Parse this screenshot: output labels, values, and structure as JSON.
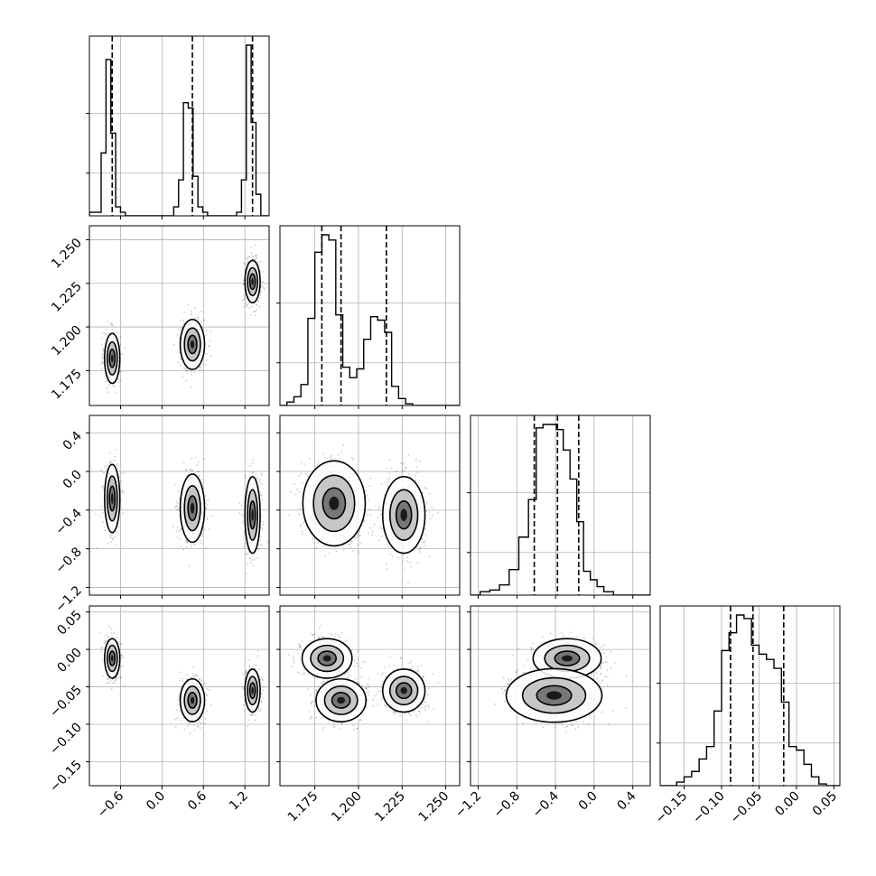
{
  "chart_data": {
    "type": "corner",
    "grid": true,
    "parameters": [
      {
        "range": [
          -1.05,
          1.55
        ],
        "ticks": [
          -0.6,
          0.0,
          0.6,
          1.2
        ],
        "tick_labels": [
          "−0.6",
          "0.0",
          "0.6",
          "1.2"
        ],
        "quantiles": [
          -0.72,
          0.44,
          1.31
        ],
        "hist": {
          "edges": [
            -1.05,
            -0.95,
            -0.88,
            -0.81,
            -0.74,
            -0.67,
            -0.6,
            -0.53,
            -0.46,
            -0.39,
            -0.32,
            -0.25,
            -0.18,
            -0.11,
            -0.04,
            0.03,
            0.1,
            0.17,
            0.24,
            0.31,
            0.38,
            0.45,
            0.52,
            0.59,
            0.66,
            0.73,
            0.8,
            0.87,
            0.94,
            1.01,
            1.08,
            1.15,
            1.22,
            1.29,
            1.36,
            1.43,
            1.55
          ],
          "counts": [
            0.02,
            0.02,
            0.35,
            0.87,
            0.46,
            0.05,
            0.02,
            0.0,
            0.0,
            0.0,
            0.0,
            0.0,
            0.0,
            0.0,
            0.0,
            0.0,
            0.0,
            0.05,
            0.2,
            0.63,
            0.6,
            0.22,
            0.05,
            0.02,
            0.0,
            0.0,
            0.0,
            0.0,
            0.0,
            0.0,
            0.02,
            0.2,
            0.95,
            0.52,
            0.12,
            0.0
          ]
        }
      },
      {
        "range": [
          1.155,
          1.258
        ],
        "ticks": [
          1.175,
          1.2,
          1.225,
          1.25
        ],
        "tick_labels": [
          "1.175",
          "1.200",
          "1.225",
          "1.250"
        ],
        "quantiles": [
          1.179,
          1.19,
          1.216
        ],
        "hist": {
          "edges": [
            1.155,
            1.159,
            1.163,
            1.167,
            1.171,
            1.175,
            1.179,
            1.183,
            1.187,
            1.191,
            1.195,
            1.199,
            1.203,
            1.207,
            1.211,
            1.215,
            1.219,
            1.223,
            1.227,
            1.231,
            1.235,
            1.239,
            1.243,
            1.247,
            1.251,
            1.258
          ],
          "counts": [
            0.0,
            0.02,
            0.05,
            0.12,
            0.5,
            0.88,
            0.98,
            0.95,
            0.52,
            0.22,
            0.16,
            0.21,
            0.38,
            0.51,
            0.49,
            0.42,
            0.11,
            0.04,
            0.01,
            0.0,
            0.0,
            0.0,
            0.0,
            0.0,
            0.0
          ]
        }
      },
      {
        "range": [
          -1.28,
          0.58
        ],
        "ticks": [
          -1.2,
          -0.8,
          -0.4,
          0.0,
          0.4
        ],
        "tick_labels": [
          "−1.2",
          "−0.8",
          "−0.4",
          "0.0",
          "0.4"
        ],
        "quantiles": [
          -0.62,
          -0.38,
          -0.16
        ],
        "hist": {
          "edges": [
            -1.28,
            -1.18,
            -1.08,
            -0.98,
            -0.88,
            -0.78,
            -0.68,
            -0.6,
            -0.53,
            -0.46,
            -0.39,
            -0.32,
            -0.25,
            -0.18,
            -0.11,
            -0.04,
            0.03,
            0.1,
            0.2,
            0.3,
            0.58
          ],
          "counts": [
            0.0,
            0.02,
            0.03,
            0.06,
            0.15,
            0.34,
            0.56,
            0.98,
            1.0,
            1.0,
            0.97,
            0.85,
            0.68,
            0.43,
            0.14,
            0.09,
            0.05,
            0.02,
            0.0,
            0.0
          ]
        }
      },
      {
        "range": [
          -0.182,
          0.058
        ],
        "ticks": [
          -0.15,
          -0.1,
          -0.05,
          0.0,
          0.05
        ],
        "tick_labels": [
          "−0.15",
          "−0.10",
          "−0.05",
          "0.00",
          "0.05"
        ],
        "quantiles": [
          -0.088,
          -0.058,
          -0.017
        ],
        "hist": {
          "edges": [
            -0.182,
            -0.16,
            -0.15,
            -0.14,
            -0.13,
            -0.12,
            -0.11,
            -0.1,
            -0.09,
            -0.08,
            -0.07,
            -0.06,
            -0.05,
            -0.04,
            -0.03,
            -0.02,
            -0.01,
            0.0,
            0.01,
            0.02,
            0.03,
            0.04,
            0.058
          ],
          "counts": [
            0.0,
            0.02,
            0.05,
            0.08,
            0.15,
            0.22,
            0.42,
            0.76,
            0.86,
            0.96,
            0.94,
            0.79,
            0.74,
            0.71,
            0.66,
            0.47,
            0.22,
            0.2,
            0.12,
            0.05,
            0.01,
            0.0
          ]
        }
      }
    ],
    "clusters": [
      {
        "center": [
          -0.72,
          1.182,
          -0.28,
          -0.012
        ],
        "spread": [
          0.05,
          0.0065,
          0.16,
          0.012
        ],
        "weight": 0.33
      },
      {
        "center": [
          0.44,
          1.19,
          -0.38,
          -0.068
        ],
        "spread": [
          0.08,
          0.0065,
          0.16,
          0.013
        ],
        "weight": 0.33
      },
      {
        "center": [
          1.31,
          1.226,
          -0.45,
          -0.055
        ],
        "spread": [
          0.05,
          0.0055,
          0.18,
          0.013
        ],
        "weight": 0.34
      }
    ]
  }
}
